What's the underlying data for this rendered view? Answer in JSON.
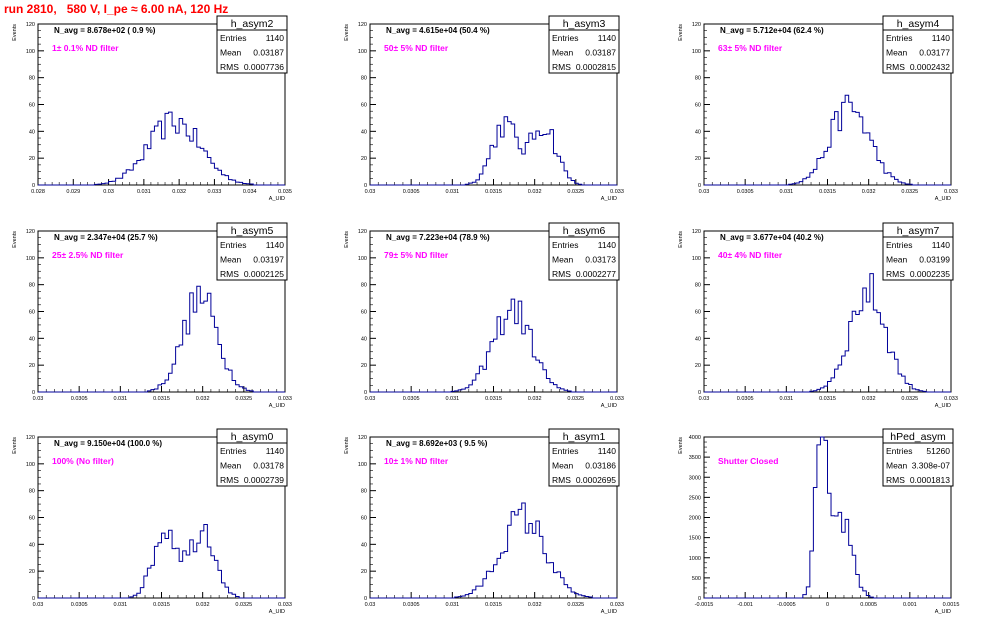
{
  "page": {
    "title": "run 2810,   580 V, I_pe ≈ 6.00 nA, 120 Hz"
  },
  "chart_data": [
    {
      "type": "histogram",
      "name": "h_asym2",
      "ylabel": "Events",
      "xlabel": "A_UID",
      "xlim": [
        0.028,
        0.035
      ],
      "ylim": [
        0,
        120
      ],
      "xticks": [
        "0.028",
        "0.029",
        "0.03",
        "0.031",
        "0.032",
        "0.033",
        "0.034",
        "0.035"
      ],
      "yticks": [
        "0",
        "20",
        "40",
        "60",
        "80",
        "100",
        "120"
      ],
      "stats": {
        "entries_label": "Entries",
        "entries": "1140",
        "mean_label": "Mean",
        "mean": "0.03187",
        "rms_label": "RMS",
        "rms": "0.0007736"
      },
      "navg": "N_avg = 8.678e+02 ( 0.9 %)",
      "annotation": "1± 0.1% ND filter",
      "center": 0.03187,
      "sigma": 0.00074,
      "peak": 47,
      "bimodal": false
    },
    {
      "type": "histogram",
      "name": "h_asym3",
      "ylabel": "Events",
      "xlabel": "A_UID",
      "xlim": [
        0.03,
        0.033
      ],
      "ylim": [
        0,
        120
      ],
      "xticks": [
        "0.03",
        "0.0305",
        "0.031",
        "0.0315",
        "0.032",
        "0.0325",
        "0.033"
      ],
      "yticks": [
        "0",
        "20",
        "40",
        "60",
        "80",
        "100",
        "120"
      ],
      "stats": {
        "entries_label": "Entries",
        "entries": "1140",
        "mean_label": "Mean",
        "mean": "0.03187",
        "rms_label": "RMS",
        "rms": "0.0002815"
      },
      "navg": "N_avg = 4.615e+04 (50.4 %)",
      "annotation": "50± 5% ND filter",
      "center": 0.03187,
      "sigma": 0.00028,
      "peak": 50,
      "bimodal": true
    },
    {
      "type": "histogram",
      "name": "h_asym4",
      "ylabel": "Events",
      "xlabel": "A_UID",
      "xlim": [
        0.03,
        0.033
      ],
      "ylim": [
        0,
        120
      ],
      "xticks": [
        "0.03",
        "0.0305",
        "0.031",
        "0.0315",
        "0.032",
        "0.0325",
        "0.033"
      ],
      "yticks": [
        "0",
        "20",
        "40",
        "60",
        "80",
        "100",
        "120"
      ],
      "stats": {
        "entries_label": "Entries",
        "entries": "1140",
        "mean_label": "Mean",
        "mean": "0.03177",
        "rms_label": "RMS",
        "rms": "0.0002432"
      },
      "navg": "N_avg = 5.712e+04 (62.4 %)",
      "annotation": "63± 5% ND filter",
      "center": 0.03177,
      "sigma": 0.00024,
      "peak": 58,
      "bimodal": false
    },
    {
      "type": "histogram",
      "name": "h_asym5",
      "ylabel": "Events",
      "xlabel": "A_UID",
      "xlim": [
        0.03,
        0.033
      ],
      "ylim": [
        0,
        120
      ],
      "xticks": [
        "0.03",
        "0.0305",
        "0.031",
        "0.0315",
        "0.032",
        "0.0325",
        "0.033"
      ],
      "yticks": [
        "0",
        "20",
        "40",
        "60",
        "80",
        "100",
        "120"
      ],
      "stats": {
        "entries_label": "Entries",
        "entries": "1140",
        "mean_label": "Mean",
        "mean": "0.03197",
        "rms_label": "RMS",
        "rms": "0.0002125"
      },
      "navg": "N_avg = 2.347e+04 (25.7 %)",
      "annotation": "25± 2.5% ND filter",
      "center": 0.03197,
      "sigma": 0.00021,
      "peak": 70,
      "bimodal": false
    },
    {
      "type": "histogram",
      "name": "h_asym6",
      "ylabel": "Events",
      "xlabel": "A_UID",
      "xlim": [
        0.03,
        0.033
      ],
      "ylim": [
        0,
        120
      ],
      "xticks": [
        "0.03",
        "0.0305",
        "0.031",
        "0.0315",
        "0.032",
        "0.0325",
        "0.033"
      ],
      "yticks": [
        "0",
        "20",
        "40",
        "60",
        "80",
        "100",
        "120"
      ],
      "stats": {
        "entries_label": "Entries",
        "entries": "1140",
        "mean_label": "Mean",
        "mean": "0.03173",
        "rms_label": "RMS",
        "rms": "0.0002277"
      },
      "navg": "N_avg = 7.223e+04 (78.9 %)",
      "annotation": "79± 5% ND filter",
      "center": 0.03173,
      "sigma": 0.00023,
      "peak": 62,
      "bimodal": false
    },
    {
      "type": "histogram",
      "name": "h_asym7",
      "ylabel": "Events",
      "xlabel": "A_UID",
      "xlim": [
        0.03,
        0.033
      ],
      "ylim": [
        0,
        120
      ],
      "xticks": [
        "0.03",
        "0.0305",
        "0.031",
        "0.0315",
        "0.032",
        "0.0325",
        "0.033"
      ],
      "yticks": [
        "0",
        "20",
        "40",
        "60",
        "80",
        "100",
        "120"
      ],
      "stats": {
        "entries_label": "Entries",
        "entries": "1140",
        "mean_label": "Mean",
        "mean": "0.03199",
        "rms_label": "RMS",
        "rms": "0.0002235"
      },
      "navg": "N_avg = 3.677e+04 (40.2 %)",
      "annotation": "40± 4% ND filter",
      "center": 0.03199,
      "sigma": 0.00022,
      "peak": 75,
      "bimodal": false
    },
    {
      "type": "histogram",
      "name": "h_asym0",
      "ylabel": "Events",
      "xlabel": "A_UID",
      "xlim": [
        0.03,
        0.033
      ],
      "ylim": [
        0,
        120
      ],
      "xticks": [
        "0.03",
        "0.0305",
        "0.031",
        "0.0315",
        "0.032",
        "0.0325",
        "0.033"
      ],
      "yticks": [
        "0",
        "20",
        "40",
        "60",
        "80",
        "100",
        "120"
      ],
      "stats": {
        "entries_label": "Entries",
        "entries": "1140",
        "mean_label": "Mean",
        "mean": "0.03178",
        "rms_label": "RMS",
        "rms": "0.0002739"
      },
      "navg": "N_avg = 9.150e+04 (100.0 %)",
      "annotation": "100% (No filter)",
      "center": 0.03178,
      "sigma": 0.00027,
      "peak": 58,
      "bimodal": true
    },
    {
      "type": "histogram",
      "name": "h_asym1",
      "ylabel": "Events",
      "xlabel": "A_UID",
      "xlim": [
        0.03,
        0.033
      ],
      "ylim": [
        0,
        120
      ],
      "xticks": [
        "0.03",
        "0.0305",
        "0.031",
        "0.0315",
        "0.032",
        "0.0325",
        "0.033"
      ],
      "yticks": [
        "0",
        "20",
        "40",
        "60",
        "80",
        "100",
        "120"
      ],
      "stats": {
        "entries_label": "Entries",
        "entries": "1140",
        "mean_label": "Mean",
        "mean": "0.03186",
        "rms_label": "RMS",
        "rms": "0.0002695"
      },
      "navg": "N_avg = 8.692e+03 ( 9.5 %)",
      "annotation": "10± 1% ND filter",
      "center": 0.03186,
      "sigma": 0.00027,
      "peak": 60,
      "bimodal": false
    },
    {
      "type": "histogram",
      "name": "hPed_asym",
      "ylabel": "Events",
      "xlabel": "A_UID",
      "xlim": [
        -0.0015,
        0.0015
      ],
      "ylim": [
        0,
        4000
      ],
      "xticks": [
        "-0.0015",
        "-0.001",
        "-0.0005",
        "0",
        "0.0005",
        "0.001",
        "0.0015"
      ],
      "yticks": [
        "0",
        "500",
        "1000",
        "1500",
        "2000",
        "2500",
        "3000",
        "3500",
        "4000"
      ],
      "stats": {
        "entries_label": "Entries",
        "entries": "51260",
        "mean_label": "Mean",
        "mean": "3.308e-07",
        "rms_label": "RMS",
        "rms": "0.0001813"
      },
      "navg": "",
      "annotation": "Shutter Closed",
      "center": 0.0,
      "sigma": 0.00018,
      "peak": 3950,
      "bimodal": true,
      "pedestal": true
    }
  ]
}
